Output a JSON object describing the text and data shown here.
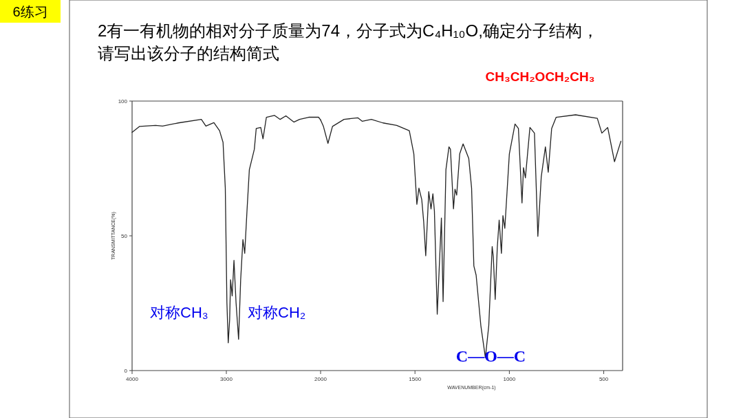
{
  "chart_data": [
    {
      "type": "line",
      "title": "6练习",
      "subtitle": "2有一有机物的相对分子质量为74，分子式为C₄H₁₀O,确定分子结构，请写出该分子的结构简式",
      "ylabel": "TRANSMITTANCE(%)",
      "xlim": [
        4000,
        2000
      ],
      "ylim": [
        0,
        100
      ],
      "xticks": [
        4000,
        3000,
        2000
      ],
      "yticks": [
        0,
        50,
        100
      ],
      "grid": false,
      "series": [
        {
          "color": "#222222",
          "x": [
            4000,
            3920,
            3750,
            3677,
            3508,
            3265,
            3217,
            3132,
            3072,
            3035,
            3011,
            2994,
            2980,
            2965,
            2955,
            2938,
            2919,
            2897,
            2870,
            2848,
            2824,
            2805,
            2781,
            2756,
            2703,
            2683,
            2635,
            2611,
            2575,
            2490,
            2429,
            2368,
            2284,
            2223,
            2126,
            2053,
            2022,
            2000
          ],
          "values": [
            88.4,
            90.6,
            91,
            90.7,
            91.9,
            93.2,
            90.7,
            92,
            89,
            84.7,
            67.7,
            25.2,
            10.3,
            18.8,
            33.7,
            27.7,
            40.9,
            25.2,
            11.6,
            33.7,
            48.6,
            43.5,
            59.2,
            74.5,
            82.1,
            89.8,
            90.2,
            86,
            94,
            94.7,
            93.2,
            94.5,
            92.2,
            93.2,
            94,
            94,
            94,
            93
          ]
        }
      ],
      "annotations": [
        "CH₃CH₂OCH₂CH₃",
        "对称CH₃",
        "对称CH₂"
      ]
    },
    {
      "type": "line",
      "xlabel": "WAVENUMBER(cm-1)",
      "xlim": [
        2000,
        400
      ],
      "ylim": [
        0,
        100
      ],
      "xticks": [
        1500,
        1000,
        500
      ],
      "tick_labels": "x",
      "grid": false,
      "series": [
        {
          "color": "#222222",
          "x": [
            2000,
            1985,
            1961,
            1937,
            1876,
            1803,
            1779,
            1731,
            1670,
            1597,
            1530,
            1506,
            1490,
            1479,
            1464,
            1454,
            1443,
            1427,
            1415,
            1405,
            1397,
            1382,
            1360,
            1351,
            1336,
            1320,
            1312,
            1296,
            1288,
            1279,
            1263,
            1245,
            1215,
            1200,
            1188,
            1176,
            1151,
            1127,
            1109,
            1091,
            1085,
            1075,
            1064,
            1054,
            1042,
            1034,
            1024,
            1000,
            970,
            952,
            933,
            925,
            915,
            891,
            867,
            849,
            831,
            809,
            794,
            776,
            752,
            649,
            534,
            510,
            479,
            443,
            409
          ],
          "values": [
            93,
            90.6,
            84.3,
            90.6,
            93.2,
            93.8,
            92.5,
            93.2,
            91.9,
            91,
            89,
            80.4,
            61.7,
            67.7,
            63.4,
            55.4,
            42.6,
            66.4,
            60,
            65.6,
            59.2,
            20.9,
            56.6,
            25.6,
            74.5,
            83,
            82.1,
            60,
            67.3,
            65.1,
            80.4,
            84.1,
            78.7,
            67.7,
            38.8,
            35.4,
            16.7,
            4.8,
            16.7,
            46,
            42.2,
            26.4,
            45.6,
            55.8,
            43.5,
            57.5,
            52.8,
            80.4,
            91.5,
            89.8,
            62.2,
            75.3,
            71.5,
            90.2,
            88.1,
            49.8,
            71.9,
            83,
            73.6,
            89.8,
            94,
            94.9,
            93.6,
            88.1,
            90.2,
            77.5,
            85.1
          ]
        }
      ],
      "annotations": [
        {
          "text": "C—O—C",
          "x": 1127,
          "y": 4.8
        }
      ]
    }
  ]
}
